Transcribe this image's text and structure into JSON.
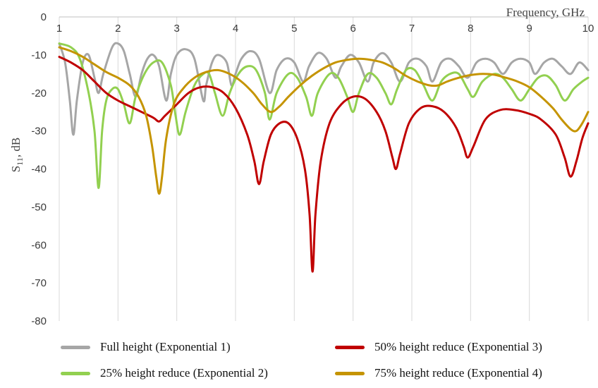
{
  "chart_data": {
    "type": "line",
    "xlabel": "Frequency, GHz",
    "ylabel_main": "S",
    "ylabel_sub": "11",
    "ylabel_unit": ", dB",
    "xlim": [
      1,
      10
    ],
    "ylim": [
      -80,
      0
    ],
    "xticks": [
      1,
      2,
      3,
      4,
      5,
      6,
      7,
      8,
      9,
      10
    ],
    "yticks": [
      0,
      -10,
      -20,
      -30,
      -40,
      -50,
      -60,
      -70,
      -80
    ],
    "grid": "vertical",
    "legend_position": "bottom",
    "series": [
      {
        "name": "Full height (Exponential 1)",
        "color": "#a6a6a6",
        "points": [
          [
            1.0,
            -7
          ],
          [
            1.1,
            -12
          ],
          [
            1.18,
            -22
          ],
          [
            1.24,
            -31
          ],
          [
            1.3,
            -22
          ],
          [
            1.4,
            -12
          ],
          [
            1.5,
            -10
          ],
          [
            1.6,
            -16
          ],
          [
            1.67,
            -20
          ],
          [
            1.75,
            -15
          ],
          [
            1.9,
            -8
          ],
          [
            2.0,
            -7
          ],
          [
            2.1,
            -9
          ],
          [
            2.2,
            -15
          ],
          [
            2.3,
            -21
          ],
          [
            2.4,
            -15
          ],
          [
            2.5,
            -11
          ],
          [
            2.6,
            -10
          ],
          [
            2.7,
            -13
          ],
          [
            2.82,
            -22
          ],
          [
            2.9,
            -15
          ],
          [
            3.0,
            -10
          ],
          [
            3.15,
            -8.5
          ],
          [
            3.3,
            -11
          ],
          [
            3.45,
            -22
          ],
          [
            3.5,
            -18
          ],
          [
            3.6,
            -12
          ],
          [
            3.7,
            -10
          ],
          [
            3.85,
            -12
          ],
          [
            3.93,
            -18
          ],
          [
            4.0,
            -15
          ],
          [
            4.1,
            -11
          ],
          [
            4.25,
            -9
          ],
          [
            4.4,
            -11
          ],
          [
            4.58,
            -20
          ],
          [
            4.7,
            -14
          ],
          [
            4.85,
            -11
          ],
          [
            5.0,
            -12
          ],
          [
            5.15,
            -17
          ],
          [
            5.25,
            -13
          ],
          [
            5.4,
            -9.5
          ],
          [
            5.55,
            -11
          ],
          [
            5.7,
            -16
          ],
          [
            5.8,
            -13
          ],
          [
            5.95,
            -10
          ],
          [
            6.1,
            -12
          ],
          [
            6.25,
            -17
          ],
          [
            6.35,
            -12
          ],
          [
            6.5,
            -9.5
          ],
          [
            6.65,
            -12
          ],
          [
            6.8,
            -17
          ],
          [
            6.95,
            -12
          ],
          [
            7.1,
            -11
          ],
          [
            7.25,
            -13
          ],
          [
            7.35,
            -17
          ],
          [
            7.5,
            -12
          ],
          [
            7.65,
            -11
          ],
          [
            7.8,
            -13
          ],
          [
            7.95,
            -16
          ],
          [
            8.1,
            -12
          ],
          [
            8.25,
            -11
          ],
          [
            8.4,
            -12
          ],
          [
            8.55,
            -15
          ],
          [
            8.7,
            -12
          ],
          [
            8.85,
            -11
          ],
          [
            9.0,
            -12
          ],
          [
            9.1,
            -15
          ],
          [
            9.25,
            -12
          ],
          [
            9.4,
            -11
          ],
          [
            9.55,
            -13
          ],
          [
            9.7,
            -15
          ],
          [
            9.85,
            -12
          ],
          [
            10.0,
            -14
          ]
        ]
      },
      {
        "name": "25% height reduce (Exponential 2)",
        "color": "#92d050",
        "points": [
          [
            1.0,
            -7
          ],
          [
            1.2,
            -8
          ],
          [
            1.35,
            -11
          ],
          [
            1.5,
            -20
          ],
          [
            1.6,
            -30
          ],
          [
            1.67,
            -45
          ],
          [
            1.73,
            -30
          ],
          [
            1.8,
            -22
          ],
          [
            1.9,
            -19
          ],
          [
            2.0,
            -19
          ],
          [
            2.1,
            -23
          ],
          [
            2.2,
            -28
          ],
          [
            2.3,
            -21
          ],
          [
            2.45,
            -15
          ],
          [
            2.6,
            -12
          ],
          [
            2.75,
            -12
          ],
          [
            2.9,
            -18
          ],
          [
            2.98,
            -26
          ],
          [
            3.05,
            -31
          ],
          [
            3.15,
            -25
          ],
          [
            3.3,
            -18
          ],
          [
            3.45,
            -15
          ],
          [
            3.55,
            -15
          ],
          [
            3.65,
            -20
          ],
          [
            3.78,
            -26
          ],
          [
            3.9,
            -20
          ],
          [
            4.05,
            -15
          ],
          [
            4.2,
            -13
          ],
          [
            4.35,
            -14
          ],
          [
            4.5,
            -20
          ],
          [
            4.58,
            -27
          ],
          [
            4.7,
            -20
          ],
          [
            4.9,
            -15
          ],
          [
            5.05,
            -16
          ],
          [
            5.2,
            -21
          ],
          [
            5.3,
            -26
          ],
          [
            5.4,
            -20
          ],
          [
            5.6,
            -15
          ],
          [
            5.75,
            -16
          ],
          [
            5.9,
            -21
          ],
          [
            6.0,
            -25
          ],
          [
            6.1,
            -20
          ],
          [
            6.25,
            -15
          ],
          [
            6.4,
            -16
          ],
          [
            6.55,
            -20
          ],
          [
            6.65,
            -23
          ],
          [
            6.75,
            -19
          ],
          [
            6.9,
            -14
          ],
          [
            7.05,
            -14
          ],
          [
            7.2,
            -18
          ],
          [
            7.35,
            -22
          ],
          [
            7.5,
            -17
          ],
          [
            7.65,
            -15
          ],
          [
            7.8,
            -15
          ],
          [
            7.95,
            -19
          ],
          [
            8.05,
            -21
          ],
          [
            8.2,
            -17
          ],
          [
            8.4,
            -15
          ],
          [
            8.55,
            -16
          ],
          [
            8.7,
            -19
          ],
          [
            8.85,
            -22
          ],
          [
            9.0,
            -19
          ],
          [
            9.15,
            -16
          ],
          [
            9.3,
            -15.5
          ],
          [
            9.45,
            -18
          ],
          [
            9.6,
            -22
          ],
          [
            9.75,
            -19
          ],
          [
            9.9,
            -17
          ],
          [
            10.0,
            -16
          ]
        ]
      },
      {
        "name": "50% height reduce (Exponential 3)",
        "color": "#c00000",
        "points": [
          [
            1.0,
            -10.5
          ],
          [
            1.2,
            -12
          ],
          [
            1.4,
            -14
          ],
          [
            1.6,
            -17
          ],
          [
            1.8,
            -20
          ],
          [
            2.0,
            -22
          ],
          [
            2.2,
            -23.5
          ],
          [
            2.4,
            -25
          ],
          [
            2.6,
            -26.5
          ],
          [
            2.7,
            -27.5
          ],
          [
            2.8,
            -26
          ],
          [
            3.0,
            -23
          ],
          [
            3.2,
            -20
          ],
          [
            3.4,
            -18.5
          ],
          [
            3.6,
            -18.5
          ],
          [
            3.8,
            -20
          ],
          [
            4.0,
            -24
          ],
          [
            4.2,
            -31
          ],
          [
            4.32,
            -38
          ],
          [
            4.4,
            -44
          ],
          [
            4.48,
            -38
          ],
          [
            4.6,
            -31
          ],
          [
            4.75,
            -28
          ],
          [
            4.9,
            -28
          ],
          [
            5.05,
            -32
          ],
          [
            5.18,
            -40
          ],
          [
            5.26,
            -52
          ],
          [
            5.31,
            -67
          ],
          [
            5.36,
            -52
          ],
          [
            5.45,
            -38
          ],
          [
            5.6,
            -28
          ],
          [
            5.8,
            -23
          ],
          [
            6.0,
            -21
          ],
          [
            6.2,
            -21.5
          ],
          [
            6.4,
            -25
          ],
          [
            6.55,
            -30
          ],
          [
            6.67,
            -37
          ],
          [
            6.73,
            -40
          ],
          [
            6.8,
            -36
          ],
          [
            6.95,
            -28
          ],
          [
            7.15,
            -24
          ],
          [
            7.35,
            -23.5
          ],
          [
            7.55,
            -25
          ],
          [
            7.75,
            -29
          ],
          [
            7.88,
            -34
          ],
          [
            7.95,
            -37
          ],
          [
            8.05,
            -34
          ],
          [
            8.25,
            -27
          ],
          [
            8.5,
            -24.5
          ],
          [
            8.75,
            -24.5
          ],
          [
            9.0,
            -25.5
          ],
          [
            9.2,
            -27
          ],
          [
            9.45,
            -31
          ],
          [
            9.6,
            -37
          ],
          [
            9.7,
            -42
          ],
          [
            9.8,
            -38
          ],
          [
            9.9,
            -32
          ],
          [
            10.0,
            -28
          ]
        ]
      },
      {
        "name": "75% height reduce (Exponential 4)",
        "color": "#c59400",
        "points": [
          [
            1.0,
            -8
          ],
          [
            1.2,
            -9
          ],
          [
            1.4,
            -10.5
          ],
          [
            1.6,
            -12.5
          ],
          [
            1.8,
            -14.5
          ],
          [
            2.0,
            -16
          ],
          [
            2.2,
            -18
          ],
          [
            2.35,
            -21
          ],
          [
            2.48,
            -26
          ],
          [
            2.58,
            -34
          ],
          [
            2.65,
            -42
          ],
          [
            2.7,
            -46.5
          ],
          [
            2.75,
            -42
          ],
          [
            2.82,
            -32
          ],
          [
            2.95,
            -23
          ],
          [
            3.1,
            -19
          ],
          [
            3.3,
            -16
          ],
          [
            3.5,
            -14.5
          ],
          [
            3.7,
            -14
          ],
          [
            3.9,
            -15
          ],
          [
            4.1,
            -17
          ],
          [
            4.3,
            -20
          ],
          [
            4.45,
            -23
          ],
          [
            4.6,
            -25
          ],
          [
            4.75,
            -23.5
          ],
          [
            4.9,
            -21
          ],
          [
            5.1,
            -18
          ],
          [
            5.3,
            -15.5
          ],
          [
            5.5,
            -13.5
          ],
          [
            5.7,
            -12
          ],
          [
            5.9,
            -11.3
          ],
          [
            6.1,
            -11
          ],
          [
            6.3,
            -11.3
          ],
          [
            6.5,
            -12
          ],
          [
            6.7,
            -13.5
          ],
          [
            6.9,
            -15.5
          ],
          [
            7.1,
            -17
          ],
          [
            7.3,
            -18
          ],
          [
            7.45,
            -18
          ],
          [
            7.6,
            -17
          ],
          [
            7.8,
            -16
          ],
          [
            8.0,
            -15.3
          ],
          [
            8.2,
            -15
          ],
          [
            8.4,
            -15.2
          ],
          [
            8.6,
            -16
          ],
          [
            8.8,
            -17
          ],
          [
            9.0,
            -18.5
          ],
          [
            9.2,
            -21
          ],
          [
            9.4,
            -24
          ],
          [
            9.55,
            -27
          ],
          [
            9.7,
            -29.5
          ],
          [
            9.8,
            -30
          ],
          [
            9.9,
            -28
          ],
          [
            10.0,
            -25
          ]
        ]
      }
    ]
  }
}
